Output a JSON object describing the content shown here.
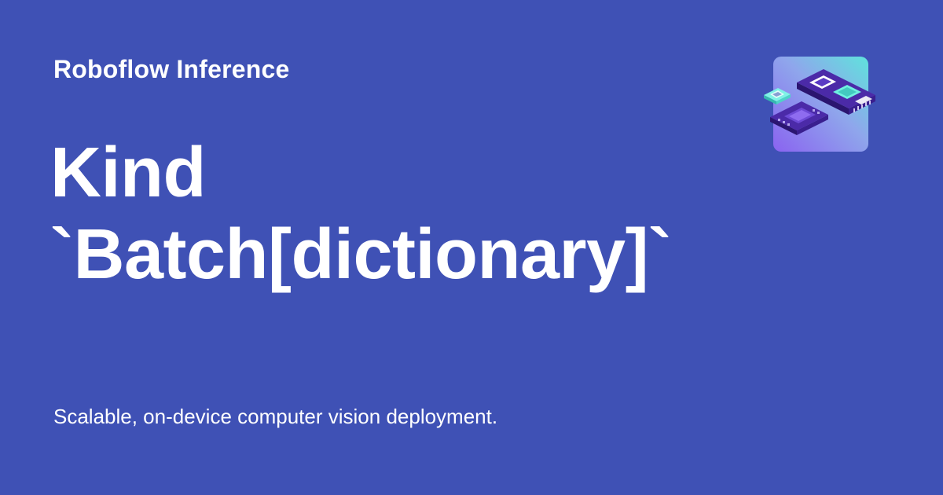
{
  "site": {
    "name": "Roboflow Inference"
  },
  "title": {
    "line1": "Kind",
    "line2": "`Batch[dictionary]`"
  },
  "description": "Scalable, on-device computer vision deployment.",
  "logo": {
    "icon": "hardware-chip-icon"
  },
  "colors": {
    "background": "#3f51b5",
    "text": "#ffffff",
    "logo_gradient_start": "#8a63f0",
    "logo_gradient_end": "#5fe3dc"
  }
}
